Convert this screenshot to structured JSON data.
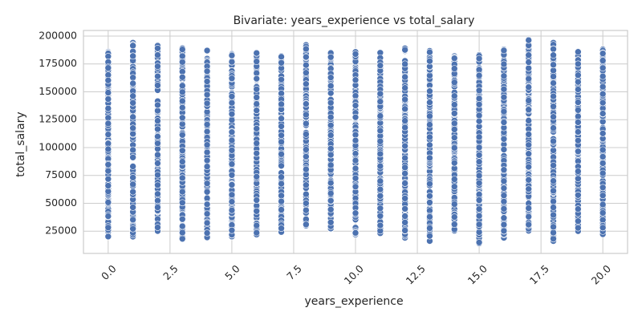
{
  "chart_data": {
    "type": "scatter",
    "title": "Bivariate: years_experience vs total_salary",
    "xlabel": "years_experience",
    "ylabel": "total_salary",
    "xlim": [
      -1.0,
      21.0
    ],
    "ylim": [
      5000,
      205000
    ],
    "x_ticks": [
      0,
      2.5,
      5,
      7.5,
      10,
      12.5,
      15,
      17.5,
      20
    ],
    "x_tick_labels": [
      "0.0",
      "2.5",
      "5.0",
      "7.5",
      "10.0",
      "12.5",
      "15.0",
      "17.5",
      "20.0"
    ],
    "y_ticks": [
      25000,
      50000,
      75000,
      100000,
      125000,
      150000,
      175000,
      200000
    ],
    "y_tick_labels": [
      "25000",
      "50000",
      "75000",
      "100000",
      "125000",
      "150000",
      "175000",
      "200000"
    ],
    "grid": true,
    "marker_color": "#4c72b0",
    "series": [
      {
        "columns": [
          {
            "x": 0,
            "min": 20000,
            "max": 186000
          },
          {
            "x": 1,
            "min": 20000,
            "max": 194000
          },
          {
            "x": 2,
            "min": 25000,
            "max": 192000
          },
          {
            "x": 3,
            "min": 18000,
            "max": 189000
          },
          {
            "x": 4,
            "min": 19000,
            "max": 187000
          },
          {
            "x": 5,
            "min": 20000,
            "max": 184000
          },
          {
            "x": 6,
            "min": 22000,
            "max": 185000
          },
          {
            "x": 7,
            "min": 24000,
            "max": 182000
          },
          {
            "x": 8,
            "min": 30000,
            "max": 192000
          },
          {
            "x": 9,
            "min": 27000,
            "max": 185000
          },
          {
            "x": 10,
            "min": 22000,
            "max": 186000
          },
          {
            "x": 11,
            "min": 23000,
            "max": 185000
          },
          {
            "x": 12,
            "min": 19000,
            "max": 189000
          },
          {
            "x": 13,
            "min": 16000,
            "max": 187000
          },
          {
            "x": 14,
            "min": 25000,
            "max": 182000
          },
          {
            "x": 15,
            "min": 14000,
            "max": 183000
          },
          {
            "x": 16,
            "min": 19000,
            "max": 188000
          },
          {
            "x": 17,
            "min": 25000,
            "max": 197000
          },
          {
            "x": 18,
            "min": 16000,
            "max": 194000
          },
          {
            "x": 19,
            "min": 25000,
            "max": 186000
          },
          {
            "x": 20,
            "min": 22000,
            "max": 188000
          }
        ]
      }
    ]
  }
}
